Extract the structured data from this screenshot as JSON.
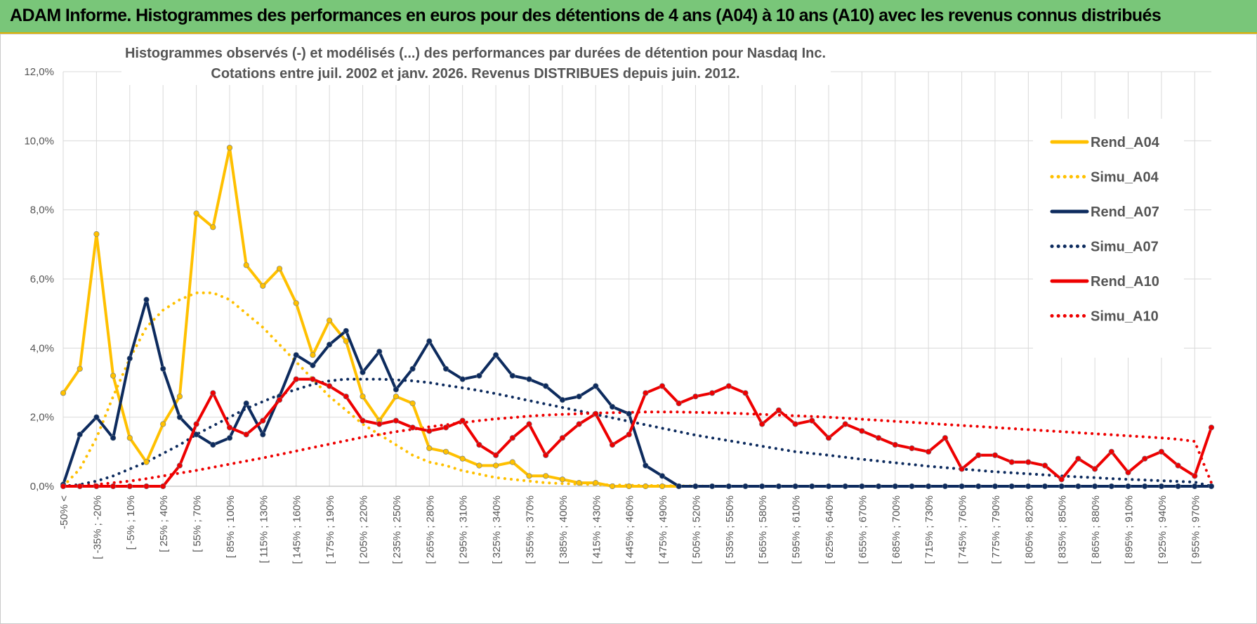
{
  "header": {
    "title": "ADAM Informe. Histogrammes des performances en euros pour des détentions de 4 ans (A04) à 10 ans (A10) avec les revenus connus distribués"
  },
  "colors": {
    "header_bg": "#79c679",
    "A04": "#ffc000",
    "A07": "#0d2b5e",
    "A10": "#ee0000"
  },
  "chart_data": {
    "type": "line",
    "title": "Histogrammes observés (-) et modélisés (...) des performances par durées de détention pour Nasdaq Inc.",
    "subtitle": "Cotations entre juil. 2002 et janv. 2026. Revenus DISTRIBUES depuis juin. 2012.",
    "ylim": [
      0,
      12
    ],
    "yticks": [
      "0,0%",
      "2,0%",
      "4,0%",
      "6,0%",
      "8,0%",
      "10,0%",
      "12,0%"
    ],
    "grid": true,
    "legend_position": "right",
    "x_tick_labels": [
      "-50% <",
      "[ -35% ; -20%",
      "[ -5% ; 10%",
      "[ 25% ; 40%",
      "[ 55% ; 70%",
      "[ 85% ; 100%",
      "[ 115% ; 130%",
      "[ 145% ; 160%",
      "[ 175% ; 190%",
      "[ 205% ; 220%",
      "[ 235% ; 250%",
      "[ 265% ; 280%",
      "[ 295% ; 310%",
      "[ 325% ; 340%",
      "[ 355% ; 370%",
      "[ 385% ; 400%",
      "[ 415% ; 430%",
      "[ 445% ; 460%",
      "[ 475% ; 490%",
      "[ 505% ; 520%",
      "[ 535% ; 550%",
      "[ 565% ; 580%",
      "[ 595% ; 610%",
      "[ 625% ; 640%",
      "[ 655% ; 670%",
      "[ 685% ; 700%",
      "[ 715% ; 730%",
      "[ 745% ; 760%",
      "[ 775% ; 790%",
      "[ 805% ; 820%",
      "[ 835% ; 850%",
      "[ 865% ; 880%",
      "[ 895% ; 910%",
      "[ 925% ; 940%",
      "[ 955% ; 970%"
    ],
    "series": [
      {
        "name": "Rend_A04",
        "style": "solid",
        "color": "#ffc000",
        "values": [
          2.7,
          3.4,
          7.3,
          3.2,
          1.4,
          0.7,
          1.8,
          2.6,
          7.9,
          7.5,
          9.8,
          6.4,
          5.8,
          6.3,
          5.3,
          3.8,
          4.8,
          4.2,
          2.6,
          1.9,
          2.6,
          2.4,
          1.1,
          1.0,
          0.8,
          0.6,
          0.6,
          0.7,
          0.3,
          0.3,
          0.2,
          0.1,
          0.1,
          0.0,
          0.0,
          0.0,
          0.0,
          0.0
        ]
      },
      {
        "name": "Simu_A04",
        "style": "dotted",
        "color": "#ffc000",
        "values": [
          0.0,
          0.5,
          1.4,
          2.6,
          3.7,
          4.6,
          5.1,
          5.4,
          5.6,
          5.6,
          5.4,
          5.0,
          4.6,
          4.1,
          3.6,
          3.1,
          2.6,
          2.2,
          1.8,
          1.5,
          1.2,
          0.9,
          0.7,
          0.6,
          0.45,
          0.35,
          0.25,
          0.2,
          0.15,
          0.1,
          0.08,
          0.06,
          0.05,
          0.04,
          0.03,
          0.02,
          0.02,
          0.01,
          0.01,
          0.0,
          0.0,
          0.0,
          0.0,
          0.0,
          0.0,
          0.0,
          0.0,
          0.0,
          0.0,
          0.0,
          0.0,
          0.0,
          0.0,
          0.0,
          0.0,
          0.0,
          0.0,
          0.0,
          0.0,
          0.0,
          0.0,
          0.0,
          0.0,
          0.0,
          0.0,
          0.0,
          0.0,
          0.0,
          0.0,
          0.0
        ]
      },
      {
        "name": "Rend_A07",
        "style": "solid",
        "color": "#0d2b5e",
        "values": [
          0.05,
          1.5,
          2.0,
          1.4,
          3.7,
          5.4,
          3.4,
          2.0,
          1.5,
          1.2,
          1.4,
          2.4,
          1.5,
          2.6,
          3.8,
          3.5,
          4.1,
          4.5,
          3.3,
          3.9,
          2.8,
          3.4,
          4.2,
          3.4,
          3.1,
          3.2,
          3.8,
          3.2,
          3.1,
          2.9,
          2.5,
          2.6,
          2.9,
          2.3,
          2.1,
          0.6,
          0.3,
          0.0,
          0.0,
          0.0,
          0.0,
          0.0,
          0.0,
          0.0,
          0.0,
          0.0,
          0.0,
          0.0,
          0.0,
          0.0,
          0.0,
          0.0,
          0.0,
          0.0,
          0.0,
          0.0,
          0.0,
          0.0,
          0.0,
          0.0,
          0.0,
          0.0,
          0.0,
          0.0,
          0.0,
          0.0,
          0.0,
          0.0,
          0.0,
          0.0
        ]
      },
      {
        "name": "Simu_A07",
        "style": "dotted",
        "color": "#0d2b5e",
        "values": [
          0.0,
          0.05,
          0.15,
          0.3,
          0.5,
          0.7,
          0.95,
          1.2,
          1.5,
          1.75,
          2.0,
          2.25,
          2.45,
          2.65,
          2.8,
          2.95,
          3.05,
          3.1,
          3.1,
          3.1,
          3.08,
          3.05,
          3.0,
          2.92,
          2.85,
          2.77,
          2.68,
          2.58,
          2.48,
          2.38,
          2.28,
          2.18,
          2.08,
          1.98,
          1.88,
          1.78,
          1.68,
          1.58,
          1.48,
          1.4,
          1.32,
          1.24,
          1.16,
          1.08,
          1.0,
          0.95,
          0.9,
          0.84,
          0.78,
          0.73,
          0.68,
          0.63,
          0.58,
          0.54,
          0.5,
          0.46,
          0.42,
          0.39,
          0.36,
          0.33,
          0.3,
          0.27,
          0.25,
          0.22,
          0.2,
          0.18,
          0.16,
          0.14,
          0.12,
          0.0
        ]
      },
      {
        "name": "Rend_A10",
        "style": "solid",
        "color": "#ee0000",
        "values": [
          0.0,
          0.0,
          0.0,
          0.0,
          0.0,
          0.0,
          0.0,
          0.6,
          1.8,
          2.7,
          1.7,
          1.5,
          1.9,
          2.5,
          3.1,
          3.1,
          2.9,
          2.6,
          1.9,
          1.8,
          1.9,
          1.7,
          1.6,
          1.7,
          1.9,
          1.2,
          0.9,
          1.4,
          1.8,
          0.9,
          1.4,
          1.8,
          2.1,
          1.2,
          1.5,
          2.7,
          2.9,
          2.4,
          2.6,
          2.7,
          2.9,
          2.7,
          1.8,
          2.2,
          1.8,
          1.9,
          1.4,
          1.8,
          1.6,
          1.4,
          1.2,
          1.1,
          1.0,
          1.4,
          0.5,
          0.9,
          0.9,
          0.7,
          0.7,
          0.6,
          0.2,
          0.8,
          0.5,
          1.0,
          0.4,
          0.8,
          1.0,
          0.6,
          0.3,
          1.7
        ]
      },
      {
        "name": "Simu_A10",
        "style": "dotted",
        "color": "#ee0000",
        "values": [
          0.0,
          0.02,
          0.05,
          0.1,
          0.15,
          0.22,
          0.3,
          0.38,
          0.46,
          0.55,
          0.64,
          0.73,
          0.82,
          0.92,
          1.02,
          1.12,
          1.22,
          1.32,
          1.42,
          1.5,
          1.58,
          1.65,
          1.72,
          1.78,
          1.84,
          1.9,
          1.95,
          1.99,
          2.03,
          2.06,
          2.08,
          2.1,
          2.12,
          2.13,
          2.14,
          2.15,
          2.15,
          2.15,
          2.14,
          2.13,
          2.12,
          2.1,
          2.08,
          2.06,
          2.04,
          2.02,
          2.0,
          1.97,
          1.94,
          1.91,
          1.88,
          1.85,
          1.82,
          1.79,
          1.76,
          1.73,
          1.7,
          1.67,
          1.64,
          1.61,
          1.58,
          1.55,
          1.52,
          1.49,
          1.46,
          1.43,
          1.4,
          1.36,
          1.3,
          0.1
        ]
      }
    ]
  }
}
